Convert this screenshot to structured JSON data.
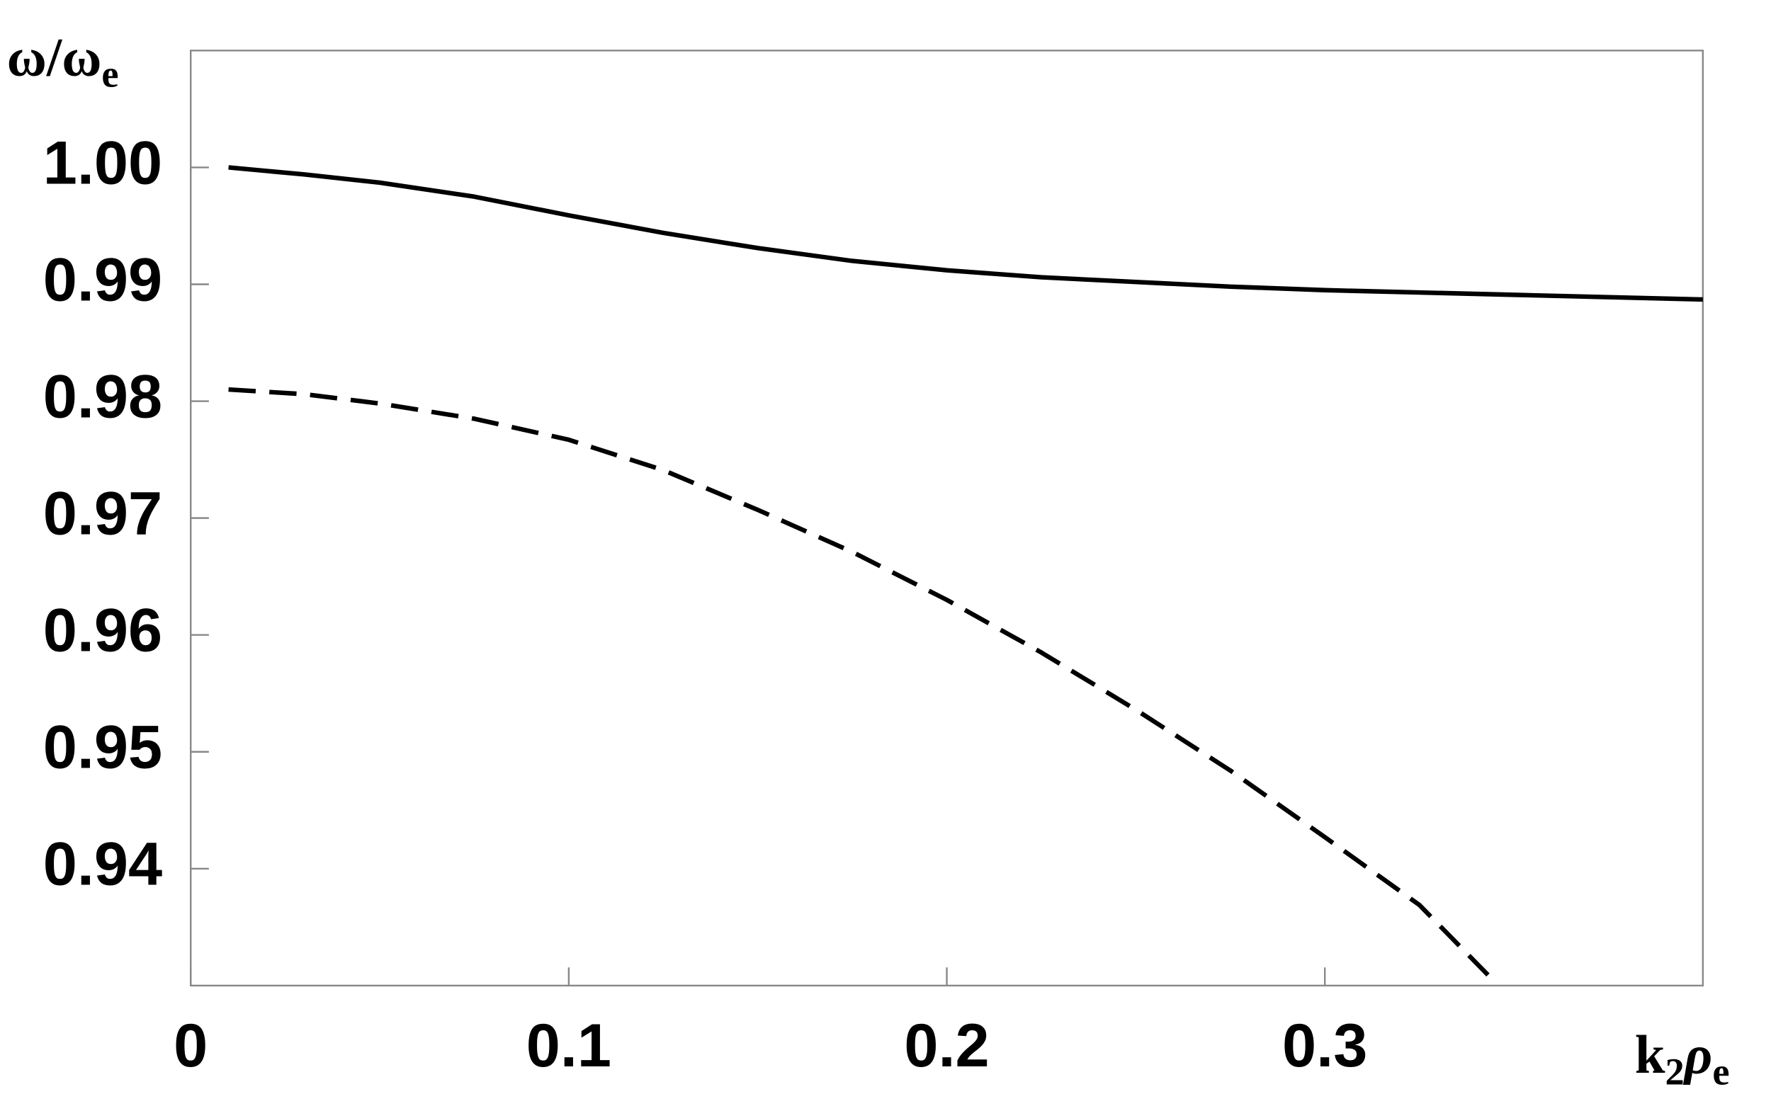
{
  "chart_data": {
    "type": "line",
    "ylabel": [
      "ω/ω",
      "e"
    ],
    "xlabel": [
      "k",
      "2",
      "ρ",
      "e"
    ],
    "xlim": [
      0,
      0.4
    ],
    "ylim": [
      0.93,
      1.01
    ],
    "xticks": [
      0,
      0.1,
      0.2,
      0.3
    ],
    "yticks": [
      0.94,
      0.95,
      0.96,
      0.97,
      0.98,
      0.99,
      {
        "value": 1,
        "label": "1.00"
      }
    ],
    "series": [
      {
        "style": "solid",
        "color": "#000000",
        "x": [
          0.01,
          0.03,
          0.05,
          0.075,
          0.1,
          0.125,
          0.15,
          0.175,
          0.2,
          0.225,
          0.25,
          0.275,
          0.3,
          0.325,
          0.35,
          0.375,
          0.4
        ],
        "values": [
          1.0,
          0.9994,
          0.9987,
          0.9975,
          0.9959,
          0.9944,
          0.9931,
          0.992,
          0.9912,
          0.9906,
          0.9902,
          0.9898,
          0.9895,
          0.9893,
          0.9891,
          0.9889,
          0.9887
        ]
      },
      {
        "style": "dashed",
        "color": "#000000",
        "x": [
          0.01,
          0.03,
          0.05,
          0.075,
          0.1,
          0.125,
          0.15,
          0.175,
          0.2,
          0.225,
          0.25,
          0.275,
          0.3,
          0.325,
          0.345
        ],
        "values": [
          0.981,
          0.9806,
          0.9798,
          0.9785,
          0.9767,
          0.9741,
          0.9707,
          0.9671,
          0.963,
          0.9585,
          0.9536,
          0.9484,
          0.9427,
          0.9369,
          0.9303
        ]
      }
    ]
  }
}
